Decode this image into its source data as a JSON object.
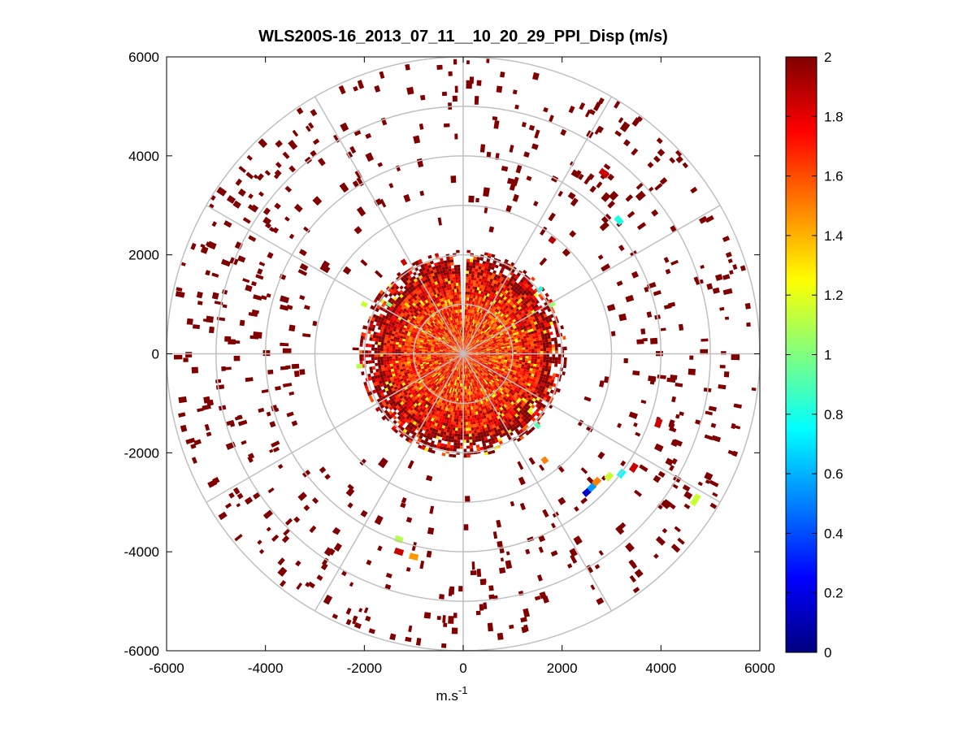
{
  "chart_data": {
    "type": "scatter",
    "title": "WLS200S-16_2013_07_11__10_20_29_PPI_Disp (m/s)",
    "xlabel": "m.s",
    "xlabel_superscript": "-1",
    "ylabel": "",
    "xlim": [
      -6000,
      6000
    ],
    "ylim": [
      -6000,
      6000
    ],
    "x_ticks": [
      -6000,
      -4000,
      -2000,
      0,
      2000,
      4000,
      6000
    ],
    "y_ticks": [
      6000,
      4000,
      2000,
      0,
      -2000,
      -4000,
      -6000
    ],
    "x_tick_labels": [
      "-6000",
      "-4000",
      "-2000",
      "0",
      "2000",
      "4000",
      "6000"
    ],
    "y_tick_labels": [
      "6000",
      "4000",
      "2000",
      "0",
      "-2000",
      "-4000",
      "-6000"
    ],
    "polar_grid": {
      "ring_radii": [
        1000,
        2000,
        3000,
        4000,
        5000,
        6000
      ],
      "spoke_angles_deg": [
        0,
        30,
        60,
        90,
        120,
        150,
        180,
        210,
        240,
        270,
        300,
        330
      ]
    },
    "colorbar": {
      "colormap": "jet",
      "range": [
        0,
        2
      ],
      "ticks": [
        0,
        0.2,
        0.4,
        0.6,
        0.8,
        1,
        1.2,
        1.4,
        1.6,
        1.8,
        2
      ],
      "tick_labels": [
        "0",
        "0.2",
        "0.4",
        "0.6",
        "0.8",
        "1",
        "1.2",
        "1.4",
        "1.6",
        "1.8",
        "2"
      ]
    },
    "dense_core": {
      "radius_m": 2100,
      "typical_value_range": [
        1.3,
        2.0
      ]
    },
    "empty_wedge": {
      "center_azimuth_deg": 90,
      "half_width_deg": 2
    },
    "sparse_returns": {
      "radius_range_m": [
        2100,
        6000
      ],
      "dominant_value": 2.0
    },
    "notable_cells": [
      {
        "x": 2500,
        "y": -2800,
        "value": 0.15
      },
      {
        "x": 2600,
        "y": -2700,
        "value": 0.55
      },
      {
        "x": 2700,
        "y": -2580,
        "value": 1.5
      },
      {
        "x": 2950,
        "y": -2480,
        "value": 1.15
      },
      {
        "x": 3200,
        "y": -2420,
        "value": 0.75
      },
      {
        "x": 3450,
        "y": -2300,
        "value": 1.85
      },
      {
        "x": 4700,
        "y": -2950,
        "value": 1.15
      },
      {
        "x": -1300,
        "y": -3750,
        "value": 1.1
      },
      {
        "x": -1300,
        "y": -4000,
        "value": 1.85
      },
      {
        "x": -1000,
        "y": -4100,
        "value": 1.45
      },
      {
        "x": 3150,
        "y": 2700,
        "value": 0.8
      },
      {
        "x": 2850,
        "y": 3650,
        "value": 1.85
      },
      {
        "x": 1550,
        "y": 1300,
        "value": 0.8
      },
      {
        "x": 1800,
        "y": 1000,
        "value": 1.05
      },
      {
        "x": -2000,
        "y": 1000,
        "value": 1.15
      },
      {
        "x": -1500,
        "y": 1000,
        "value": 1.0
      },
      {
        "x": -2100,
        "y": -250,
        "value": 1.1
      },
      {
        "x": 1500,
        "y": -1450,
        "value": 0.9
      },
      {
        "x": -1200,
        "y": 1850,
        "value": 1.85
      },
      {
        "x": 1800,
        "y": 2300,
        "value": 1.9
      },
      {
        "x": 3950,
        "y": -1400,
        "value": 1.85
      },
      {
        "x": 1650,
        "y": -2150,
        "value": 1.5
      }
    ]
  }
}
